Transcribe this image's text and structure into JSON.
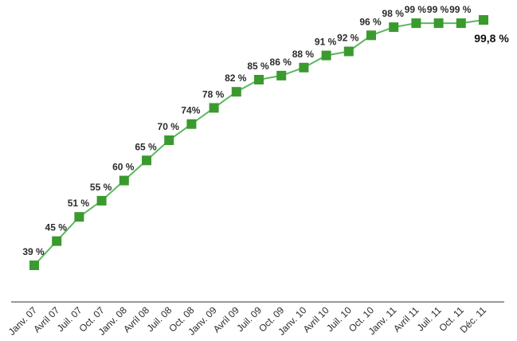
{
  "chart_data": {
    "type": "line",
    "categories": [
      "Janv. 07",
      "Avril 07",
      "Juil. 07",
      "Oct. 07",
      "Janv. 08",
      "Avril 08",
      "Juil. 08",
      "Oct. 08",
      "Janv. 09",
      "Avril 09",
      "Juil. 09",
      "Oct. 09",
      "Janv. 10",
      "Avril 10",
      "Juil. 10",
      "Oct. 10",
      "Janv. 11",
      "Avril 11",
      "Juil. 11",
      "Oct. 11",
      "Déc. 11"
    ],
    "values": [
      39,
      45,
      51,
      55,
      60,
      65,
      70,
      74,
      78,
      82,
      85,
      86,
      88,
      91,
      92,
      96,
      98,
      99,
      99,
      99,
      99.8
    ],
    "data_labels": [
      "39 %",
      "45 %",
      "51 %",
      "55 %",
      "60 %",
      "65 %",
      "70 %",
      "74%",
      "78 %",
      "82 %",
      "85 %",
      "86 %",
      "88 %",
      "91 %",
      "92 %",
      "96 %",
      "98 %",
      "99 %",
      "99 %",
      "99 %",
      "99,8 %"
    ],
    "title": "",
    "xlabel": "",
    "ylabel": "",
    "ylim": [
      30,
      102
    ],
    "grid": false,
    "legend": "none",
    "colors": {
      "line": "#5cb85c",
      "marker": "#3a9a2e",
      "label": "#2b2b2b",
      "axis": "#333333"
    }
  }
}
